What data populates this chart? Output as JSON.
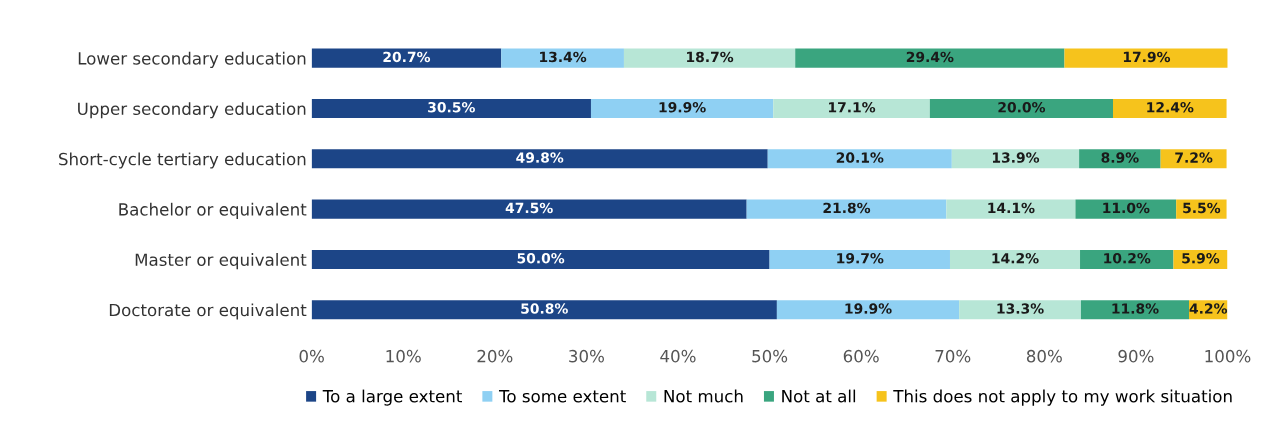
{
  "chart_data": {
    "type": "bar",
    "orientation": "horizontal",
    "stacked": true,
    "categories": [
      "Lower secondary education",
      "Upper secondary education",
      "Short-cycle tertiary education",
      "Bachelor or equivalent",
      "Master or equivalent",
      "Doctorate or equivalent"
    ],
    "series": [
      {
        "name": "To a large extent",
        "color": "#1c4587",
        "values": [
          20.7,
          30.5,
          49.8,
          47.5,
          50.0,
          50.8
        ],
        "value_labels": [
          "20.7%",
          "30.5%",
          "49.8%",
          "47.5%",
          "50.0%",
          "50.8%"
        ]
      },
      {
        "name": "To some extent",
        "color": "#8fd0f3",
        "values": [
          13.4,
          19.9,
          20.1,
          21.8,
          19.7,
          19.9
        ],
        "value_labels": [
          "13.4%",
          "19.9%",
          "20.1%",
          "21.8%",
          "19.7%",
          "19.9%"
        ]
      },
      {
        "name": "Not much",
        "color": "#b7e6d6",
        "values": [
          18.7,
          17.1,
          13.9,
          14.1,
          14.2,
          13.3
        ],
        "value_labels": [
          "18.7%",
          "17.1%",
          "13.9%",
          "14.1%",
          "14.2%",
          "13.3%"
        ]
      },
      {
        "name": "Not at all",
        "color": "#3aa57f",
        "values": [
          29.4,
          20.0,
          8.9,
          11.0,
          10.2,
          11.8
        ],
        "value_labels": [
          "29.4%",
          "20.0%",
          "8.9%",
          "11.0%",
          "10.2%",
          "11.8%"
        ]
      },
      {
        "name": "This does not apply to my work situation",
        "color": "#f6c31c",
        "values": [
          17.9,
          12.4,
          7.2,
          5.5,
          5.9,
          4.2
        ],
        "value_labels": [
          "17.9%",
          "12.4%",
          "7.2%",
          "5.5%",
          "5.9%",
          "4.2%"
        ]
      }
    ],
    "xlim": [
      0,
      100
    ],
    "xticks": [
      {
        "value": 0,
        "label": "0%"
      },
      {
        "value": 10,
        "label": "10%"
      },
      {
        "value": 20,
        "label": "20%"
      },
      {
        "value": 30,
        "label": "30%"
      },
      {
        "value": 40,
        "label": "40%"
      },
      {
        "value": 50,
        "label": "50%"
      },
      {
        "value": 60,
        "label": "60%"
      },
      {
        "value": 70,
        "label": "70%"
      },
      {
        "value": 80,
        "label": "80%"
      },
      {
        "value": 90,
        "label": "90%"
      },
      {
        "value": 100,
        "label": "100%"
      }
    ],
    "grid": false,
    "legend": "bottom"
  }
}
